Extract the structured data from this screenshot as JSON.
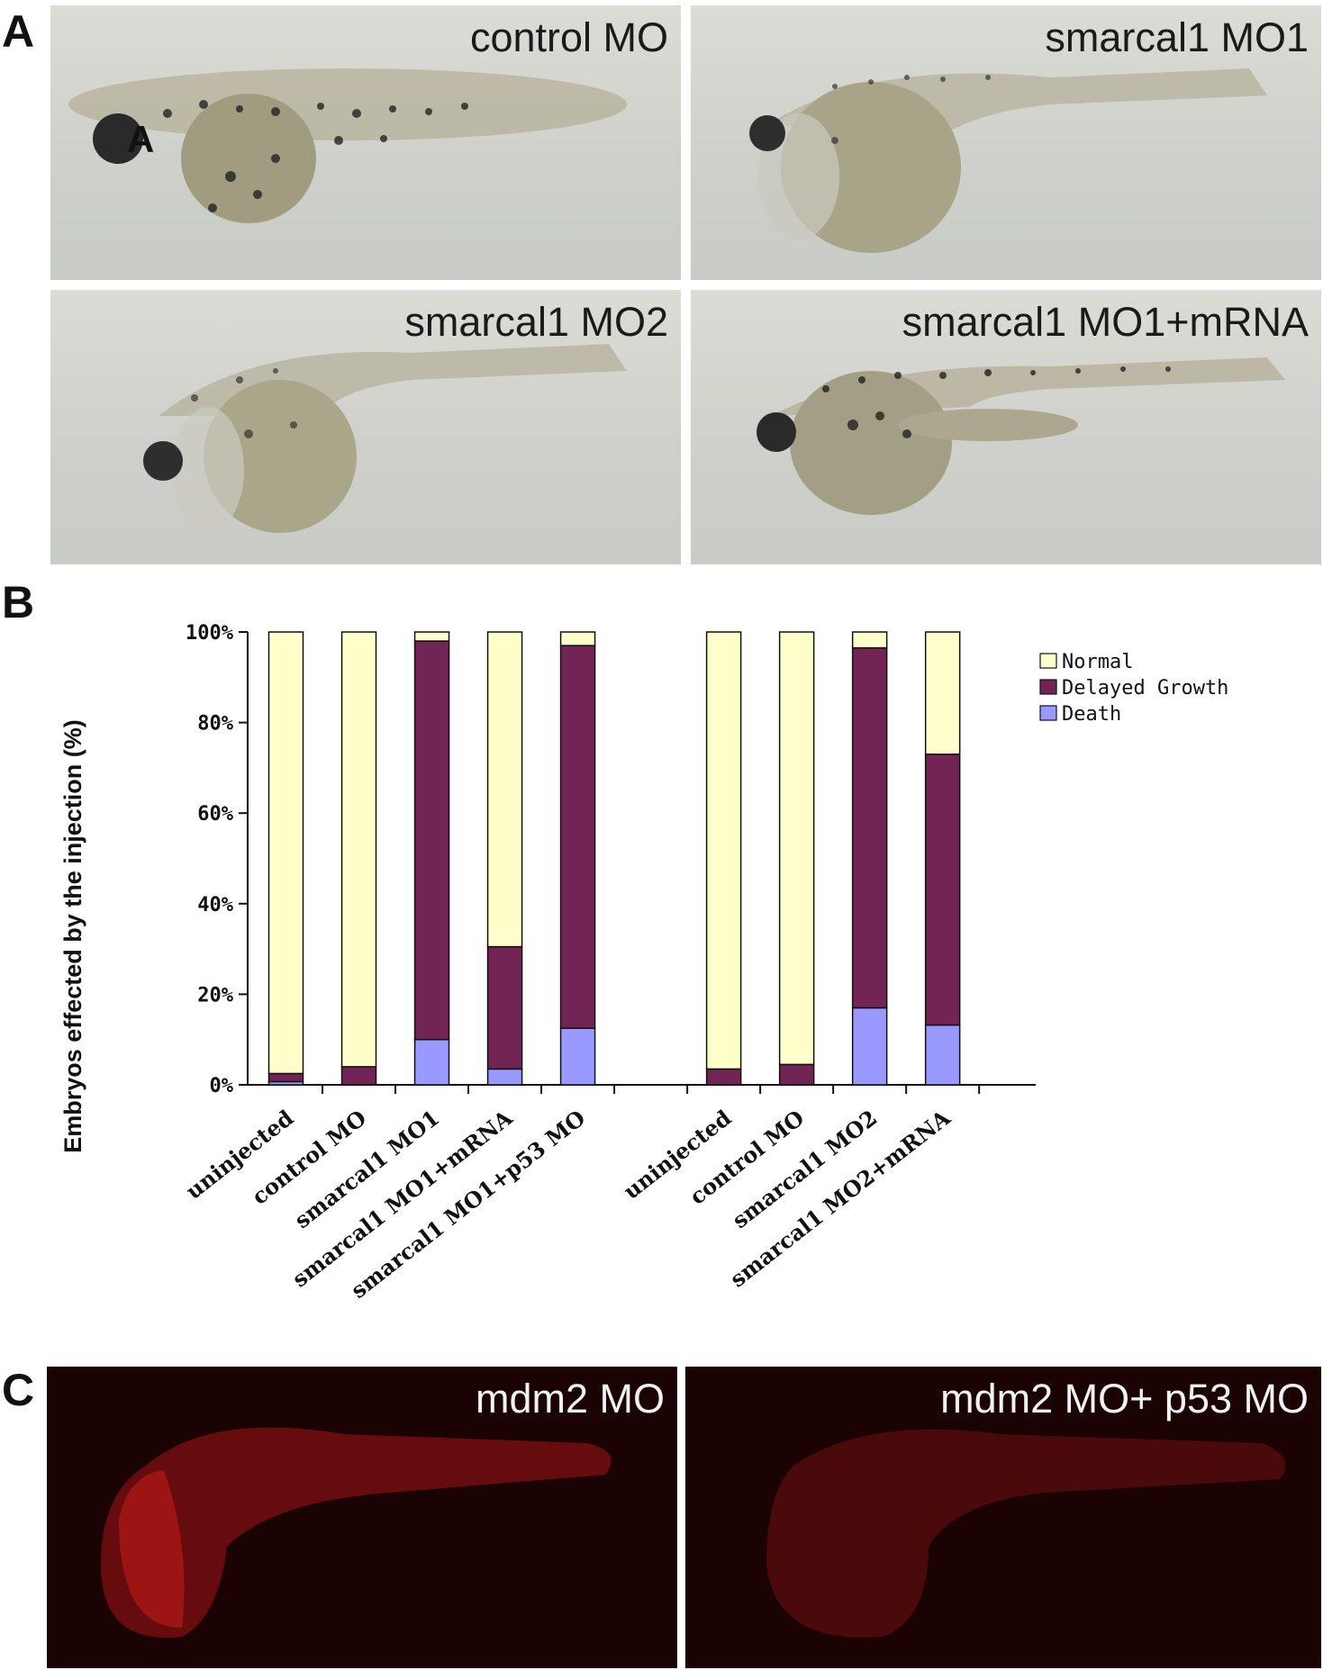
{
  "panels": {
    "a": {
      "letter": "A",
      "inset_letter": "A",
      "images": [
        {
          "label": "control MO"
        },
        {
          "label": "smarcal1 MO1"
        },
        {
          "label": "smarcal1 MO2"
        },
        {
          "label": "smarcal1 MO1+mRNA"
        }
      ]
    },
    "b": {
      "letter": "B"
    },
    "c": {
      "letter": "C",
      "images": [
        {
          "label": "mdm2 MO"
        },
        {
          "label": "mdm2 MO+ p53 MO"
        }
      ]
    }
  },
  "colors": {
    "normal": "#ffffcc",
    "delayed": "#722455",
    "death": "#9999ff"
  },
  "chart_data": {
    "type": "bar",
    "stacked": true,
    "ylabel": "Embryos effected by the injection (%)",
    "ylim": [
      0,
      100
    ],
    "yticks": [
      "0%",
      "20%",
      "40%",
      "60%",
      "80%",
      "100%"
    ],
    "categories": [
      "uninjected",
      "control MO",
      "smarcal1 MO1",
      "smarcal1 MO1+mRNA",
      "smarcal1 MO1+p53 MO",
      "",
      "uninjected",
      "control MO",
      "smarcal1 MO2",
      "smarcal1 MO2+mRNA"
    ],
    "series": [
      {
        "name": "Death",
        "values": [
          0.7,
          0,
          10,
          3.5,
          12.5,
          null,
          0,
          0,
          17,
          13.2
        ]
      },
      {
        "name": "Delayed Growth",
        "values": [
          1.8,
          4,
          88,
          27,
          84.5,
          null,
          3.5,
          4.5,
          79.5,
          59.8
        ]
      },
      {
        "name": "Normal",
        "values": [
          97.5,
          96,
          2,
          69.5,
          3,
          null,
          96.5,
          95.5,
          3.5,
          27
        ]
      }
    ],
    "legend": {
      "position": "top-right",
      "items": [
        "Normal",
        "Delayed Growth",
        "Death"
      ]
    },
    "grid": false
  }
}
